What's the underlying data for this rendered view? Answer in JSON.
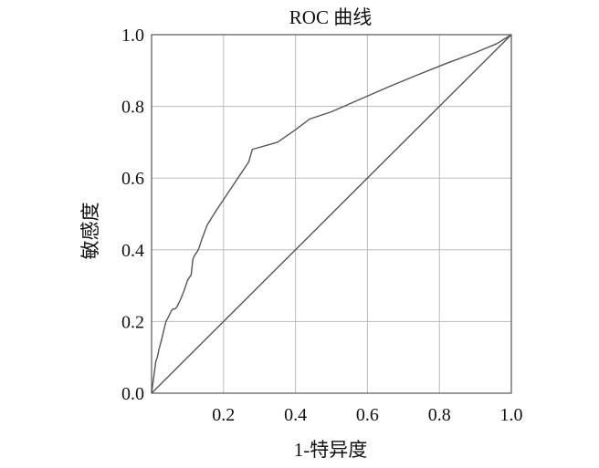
{
  "chart_data": {
    "type": "line",
    "title": "ROC 曲线",
    "xlabel": "1-特异度",
    "ylabel": "敏感度",
    "xlim": [
      0,
      1
    ],
    "ylim": [
      0,
      1
    ],
    "grid": true,
    "x_ticks": [
      0.2,
      0.4,
      0.6,
      0.8,
      1.0
    ],
    "x_tick_labels": [
      "0.2",
      "0.4",
      "0.6",
      "0.8",
      "1.0"
    ],
    "y_ticks": [
      0.0,
      0.2,
      0.4,
      0.6,
      0.8,
      1.0
    ],
    "y_tick_labels": [
      "0.0",
      "0.2",
      "0.4",
      "0.6",
      "0.8",
      "1.0"
    ],
    "series": [
      {
        "x": [
          0.0,
          0.004,
          0.008,
          0.012,
          0.016,
          0.02,
          0.028,
          0.035,
          0.04,
          0.048,
          0.055,
          0.06,
          0.065,
          0.07,
          0.075,
          0.082,
          0.09,
          0.1,
          0.11,
          0.115,
          0.12,
          0.13,
          0.14,
          0.155,
          0.18,
          0.21,
          0.24,
          0.27,
          0.28,
          0.35,
          0.4,
          0.44,
          0.5,
          0.58,
          0.66,
          0.74,
          0.82,
          0.9,
          0.96,
          1.0
        ],
        "y": [
          0.0,
          0.03,
          0.06,
          0.09,
          0.1,
          0.12,
          0.15,
          0.18,
          0.2,
          0.215,
          0.23,
          0.235,
          0.235,
          0.24,
          0.25,
          0.265,
          0.285,
          0.315,
          0.33,
          0.375,
          0.385,
          0.4,
          0.43,
          0.47,
          0.51,
          0.555,
          0.6,
          0.645,
          0.68,
          0.7,
          0.735,
          0.765,
          0.785,
          0.82,
          0.855,
          0.888,
          0.92,
          0.95,
          0.975,
          1.0
        ]
      },
      {
        "x": [
          0.0,
          1.0
        ],
        "y": [
          0.0,
          1.0
        ]
      }
    ],
    "line_color": "#555555",
    "grid_color": "#bbbbbb",
    "frame_color": "#555555"
  }
}
